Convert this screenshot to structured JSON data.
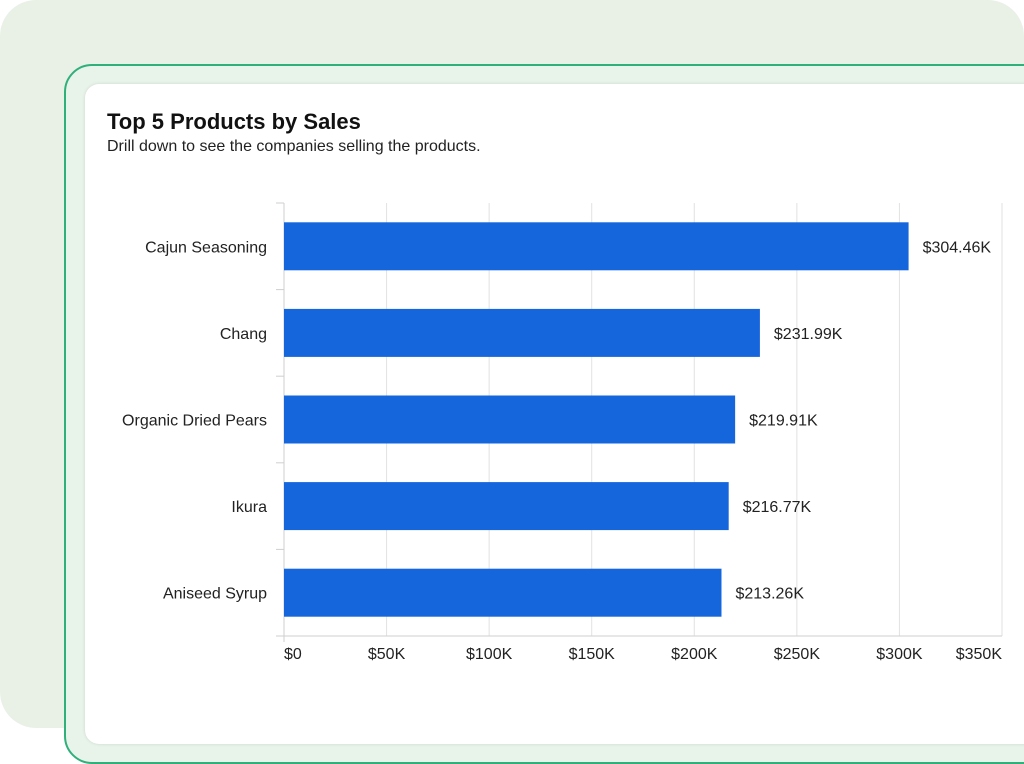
{
  "chart_data": {
    "type": "bar",
    "orientation": "horizontal",
    "title": "Top 5 Products by Sales",
    "subtitle": "Drill down to see the companies selling the products.",
    "categories": [
      "Cajun Seasoning",
      "Chang",
      "Organic Dried Pears",
      "Ikura",
      "Aniseed Syrup"
    ],
    "values": [
      304.46,
      231.99,
      219.91,
      216.77,
      213.26
    ],
    "value_labels": [
      "$304.46K",
      "$231.99K",
      "$219.91K",
      "$216.77K",
      "$213.26K"
    ],
    "x_ticks": [
      0,
      50,
      100,
      150,
      200,
      250,
      300,
      350
    ],
    "x_tick_labels": [
      "$0",
      "$50K",
      "$100K",
      "$150K",
      "$200K",
      "$250K",
      "$300K",
      "$350K"
    ],
    "xlim": [
      0,
      350
    ],
    "grid": true,
    "bar_color": "#1565dd"
  }
}
